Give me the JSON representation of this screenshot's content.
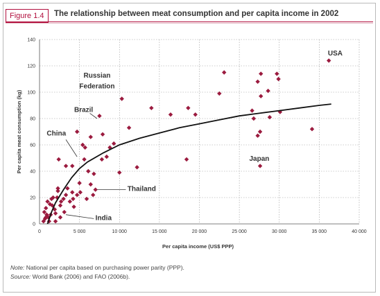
{
  "figure": {
    "label": "Figure 1.4",
    "title": "The relationship between meat consumption and per capita income in 2002"
  },
  "colors": {
    "accent": "#b2103e",
    "marker": "#9b1b3f",
    "curve": "#111111",
    "grid": "#9a9a9a"
  },
  "footnote": {
    "note_label": "Note:",
    "note_text": " National per capita based on purchasing power parity (PPP).",
    "source_label": "Source:",
    "source_text": " World Bank (2006) and FAO (2006b)."
  },
  "chart_data": {
    "type": "scatter",
    "xlabel": "Per capita income (US$ PPP)",
    "ylabel": "Per capita meat consumption (kg)",
    "xlim": [
      0,
      40000
    ],
    "ylim": [
      0,
      140
    ],
    "xticks": [
      0,
      5000,
      10000,
      15000,
      20000,
      25000,
      30000,
      35000,
      40000
    ],
    "xtick_labels": [
      "0",
      "5 000",
      "10 000",
      "15 000",
      "20 000",
      "25 000",
      "30 000",
      "35 000",
      "40 000"
    ],
    "yticks": [
      0,
      20,
      40,
      60,
      80,
      100,
      120,
      140
    ],
    "grid": "dotted",
    "points": [
      [
        36200,
        124
      ],
      [
        23100,
        115
      ],
      [
        29700,
        114
      ],
      [
        27700,
        114
      ],
      [
        29900,
        110
      ],
      [
        27300,
        108
      ],
      [
        27700,
        97
      ],
      [
        28600,
        101
      ],
      [
        22500,
        99
      ],
      [
        10300,
        95
      ],
      [
        19500,
        83
      ],
      [
        16400,
        83
      ],
      [
        18600,
        88
      ],
      [
        14000,
        88
      ],
      [
        26600,
        86
      ],
      [
        30100,
        85
      ],
      [
        26800,
        80
      ],
      [
        27600,
        70
      ],
      [
        34100,
        72
      ],
      [
        27300,
        67
      ],
      [
        28800,
        81
      ],
      [
        7500,
        82
      ],
      [
        4700,
        70
      ],
      [
        6400,
        66
      ],
      [
        7900,
        68
      ],
      [
        11200,
        73
      ],
      [
        9300,
        61
      ],
      [
        8800,
        58
      ],
      [
        5400,
        60
      ],
      [
        5700,
        58
      ],
      [
        5600,
        49
      ],
      [
        8400,
        51
      ],
      [
        7800,
        49
      ],
      [
        2400,
        49
      ],
      [
        10000,
        39
      ],
      [
        12200,
        43
      ],
      [
        18400,
        49
      ],
      [
        27600,
        44
      ],
      [
        3300,
        44
      ],
      [
        4100,
        44
      ],
      [
        6100,
        40
      ],
      [
        6800,
        38
      ],
      [
        6400,
        30
      ],
      [
        7000,
        26
      ],
      [
        6700,
        22
      ],
      [
        5000,
        31
      ],
      [
        5100,
        24
      ],
      [
        4700,
        22
      ],
      [
        5900,
        19
      ],
      [
        4200,
        19
      ],
      [
        4100,
        24
      ],
      [
        3500,
        27
      ],
      [
        3300,
        22
      ],
      [
        2700,
        17
      ],
      [
        2200,
        20
      ],
      [
        2300,
        27
      ],
      [
        1700,
        20
      ],
      [
        1600,
        14
      ],
      [
        1900,
        11
      ],
      [
        1300,
        15
      ],
      [
        1000,
        17
      ],
      [
        800,
        12
      ],
      [
        600,
        9
      ],
      [
        900,
        7
      ],
      [
        1100,
        5
      ],
      [
        700,
        4
      ],
      [
        500,
        2
      ],
      [
        1400,
        7
      ],
      [
        2000,
        8
      ],
      [
        2600,
        14
      ],
      [
        3000,
        19
      ],
      [
        3800,
        17
      ],
      [
        4300,
        13
      ],
      [
        2600,
        5
      ],
      [
        3100,
        9
      ],
      [
        1200,
        2
      ],
      [
        2300,
        25
      ],
      [
        1500,
        19
      ],
      [
        2000,
        2
      ],
      [
        800,
        5
      ]
    ],
    "trend": [
      [
        1000,
        0
      ],
      [
        1500,
        9
      ],
      [
        2000,
        16
      ],
      [
        3000,
        26
      ],
      [
        4000,
        35
      ],
      [
        5000,
        42
      ],
      [
        6000,
        47
      ],
      [
        8000,
        54
      ],
      [
        10000,
        60
      ],
      [
        12500,
        65
      ],
      [
        15000,
        69
      ],
      [
        17500,
        73
      ],
      [
        20000,
        76
      ],
      [
        22500,
        79
      ],
      [
        25000,
        82
      ],
      [
        27500,
        84
      ],
      [
        30000,
        86
      ],
      [
        32500,
        88
      ],
      [
        35000,
        90
      ],
      [
        36500,
        91
      ]
    ],
    "annotations": [
      {
        "text": "USA",
        "x": 37000,
        "y": 128,
        "anchor": "middle"
      },
      {
        "text": "Russian",
        "x": 7200,
        "y": 111,
        "anchor": "middle"
      },
      {
        "text": "Federation",
        "x": 7200,
        "y": 103,
        "anchor": "middle"
      },
      {
        "text": "Brazil",
        "x": 6700,
        "y": 85,
        "anchor": "end"
      },
      {
        "text": "China",
        "x": 900,
        "y": 67,
        "anchor": "start"
      },
      {
        "text": "Japan",
        "x": 27500,
        "y": 48,
        "anchor": "middle"
      },
      {
        "text": "Thailand",
        "x": 11000,
        "y": 25,
        "anchor": "start"
      },
      {
        "text": "India",
        "x": 7000,
        "y": 3,
        "anchor": "start"
      }
    ],
    "callouts": [
      {
        "from": [
          6300,
          84
        ],
        "to": [
          7200,
          80
        ]
      },
      {
        "from": [
          3300,
          64
        ],
        "to": [
          4700,
          51
        ]
      },
      {
        "from": [
          10800,
          26
        ],
        "to": [
          7000,
          26
        ]
      },
      {
        "from": [
          6800,
          4
        ],
        "to": [
          3300,
          7
        ]
      }
    ]
  }
}
